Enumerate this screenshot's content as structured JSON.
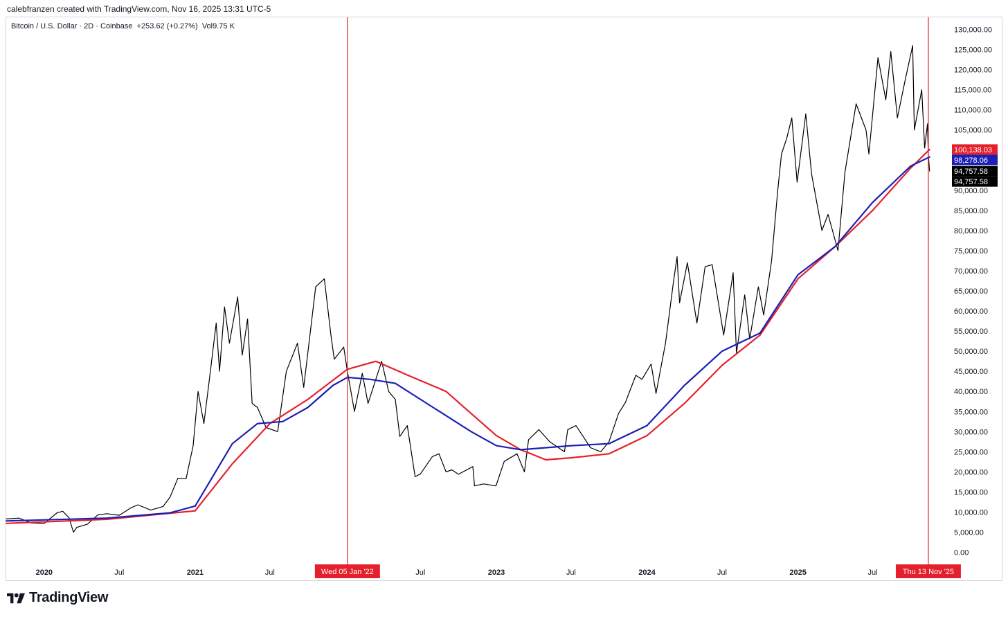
{
  "header": {
    "credit": "calebfranzen created with TradingView.com, Nov 16, 2025 13:31 UTC-5"
  },
  "legend": {
    "symbol": "Bitcoin / U.S. Dollar",
    "interval": "2D",
    "exchange": "Coinbase",
    "change": "+253.62 (+0.27%)",
    "volume": "Vol9.75 K"
  },
  "branding": {
    "name": "TradingView",
    "icon": "tradingview-logo-icon"
  },
  "colors": {
    "price": "#000000",
    "ma_red": "#e5202d",
    "ma_blue": "#1b1fb4",
    "marker": "#e5202d",
    "tag_black": "#000000"
  },
  "chart_data": {
    "type": "line",
    "x_range": [
      "2019-10-01",
      "2025-12-15"
    ],
    "y_range": [
      -3000,
      133000
    ],
    "y_ticks": [
      "130,000.00",
      "125,000.00",
      "120,000.00",
      "115,000.00",
      "110,000.00",
      "105,000.00",
      "90,000.00",
      "85,000.00",
      "80,000.00",
      "75,000.00",
      "70,000.00",
      "65,000.00",
      "60,000.00",
      "55,000.00",
      "50,000.00",
      "45,000.00",
      "40,000.00",
      "35,000.00",
      "30,000.00",
      "25,000.00",
      "20,000.00",
      "15,000.00",
      "10,000.00",
      "5,000.00",
      "0.00"
    ],
    "y_tick_values": [
      130000,
      125000,
      120000,
      115000,
      110000,
      105000,
      90000,
      85000,
      80000,
      75000,
      70000,
      65000,
      60000,
      55000,
      50000,
      45000,
      40000,
      35000,
      30000,
      25000,
      20000,
      15000,
      10000,
      5000,
      0
    ],
    "x_ticks": [
      {
        "label": "2020",
        "date": "2020-01-01",
        "bold": true
      },
      {
        "label": "Jul",
        "date": "2020-07-01",
        "bold": false
      },
      {
        "label": "2021",
        "date": "2021-01-01",
        "bold": true
      },
      {
        "label": "Jul",
        "date": "2021-07-01",
        "bold": false
      },
      {
        "label": "Jul",
        "date": "2022-07-01",
        "bold": false
      },
      {
        "label": "2023",
        "date": "2023-01-01",
        "bold": true
      },
      {
        "label": "Jul",
        "date": "2023-07-01",
        "bold": false
      },
      {
        "label": "2024",
        "date": "2024-01-01",
        "bold": true
      },
      {
        "label": "Jul",
        "date": "2024-07-01",
        "bold": false
      },
      {
        "label": "2025",
        "date": "2025-01-01",
        "bold": true
      },
      {
        "label": "Jul",
        "date": "2025-07-01",
        "bold": false
      }
    ],
    "markers": [
      {
        "label": "Wed 05 Jan '22",
        "date": "2022-01-05"
      },
      {
        "label": "Thu 13 Nov '25",
        "date": "2025-11-13"
      }
    ],
    "price_tags": [
      {
        "label": "100,138.03",
        "value": 100138.03,
        "color": "#e5202d"
      },
      {
        "label": "98,278.06",
        "value": 98278.06,
        "color": "#1b1fb4"
      },
      {
        "label": "94,757.58",
        "value": 94757.58,
        "color": "#000000"
      },
      {
        "label": "94,757.58",
        "value": 94757.58,
        "color": "#000000"
      }
    ],
    "series": [
      {
        "role": "price",
        "color": "#000000",
        "points": [
          [
            "2019-10-01",
            8300
          ],
          [
            "2019-11-01",
            8500
          ],
          [
            "2019-12-01",
            7300
          ],
          [
            "2020-01-01",
            7200
          ],
          [
            "2020-02-01",
            9800
          ],
          [
            "2020-02-15",
            10200
          ],
          [
            "2020-03-01",
            8600
          ],
          [
            "2020-03-12",
            5000
          ],
          [
            "2020-03-20",
            6200
          ],
          [
            "2020-04-15",
            7000
          ],
          [
            "2020-05-10",
            9300
          ],
          [
            "2020-06-01",
            9600
          ],
          [
            "2020-07-01",
            9200
          ],
          [
            "2020-07-28",
            11000
          ],
          [
            "2020-08-15",
            11800
          ],
          [
            "2020-09-15",
            10500
          ],
          [
            "2020-10-15",
            11400
          ],
          [
            "2020-11-01",
            13700
          ],
          [
            "2020-11-20",
            18400
          ],
          [
            "2020-12-10",
            18300
          ],
          [
            "2020-12-27",
            26500
          ],
          [
            "2021-01-08",
            40000
          ],
          [
            "2021-01-22",
            32000
          ],
          [
            "2021-02-08",
            46000
          ],
          [
            "2021-02-21",
            57000
          ],
          [
            "2021-03-01",
            45000
          ],
          [
            "2021-03-13",
            61000
          ],
          [
            "2021-03-25",
            52000
          ],
          [
            "2021-04-14",
            63500
          ],
          [
            "2021-04-25",
            49000
          ],
          [
            "2021-05-08",
            58000
          ],
          [
            "2021-05-19",
            37000
          ],
          [
            "2021-06-01",
            36000
          ],
          [
            "2021-06-22",
            31000
          ],
          [
            "2021-07-20",
            30000
          ],
          [
            "2021-08-10",
            45000
          ],
          [
            "2021-09-06",
            52000
          ],
          [
            "2021-09-21",
            41000
          ],
          [
            "2021-10-20",
            66000
          ],
          [
            "2021-11-10",
            68000
          ],
          [
            "2021-11-26",
            54000
          ],
          [
            "2021-12-04",
            48000
          ],
          [
            "2021-12-27",
            51000
          ],
          [
            "2022-01-05",
            45000
          ],
          [
            "2022-01-22",
            35000
          ],
          [
            "2022-02-10",
            44500
          ],
          [
            "2022-02-24",
            37000
          ],
          [
            "2022-03-29",
            47500
          ],
          [
            "2022-04-15",
            40000
          ],
          [
            "2022-05-01",
            38000
          ],
          [
            "2022-05-12",
            28800
          ],
          [
            "2022-05-30",
            31500
          ],
          [
            "2022-06-18",
            18800
          ],
          [
            "2022-07-01",
            19500
          ],
          [
            "2022-07-30",
            23800
          ],
          [
            "2022-08-15",
            24500
          ],
          [
            "2022-09-01",
            20000
          ],
          [
            "2022-09-15",
            20500
          ],
          [
            "2022-10-01",
            19400
          ],
          [
            "2022-11-05",
            21300
          ],
          [
            "2022-11-09",
            16500
          ],
          [
            "2022-12-01",
            17000
          ],
          [
            "2022-12-31",
            16500
          ],
          [
            "2023-01-20",
            22600
          ],
          [
            "2023-02-20",
            24500
          ],
          [
            "2023-03-10",
            20000
          ],
          [
            "2023-03-20",
            28000
          ],
          [
            "2023-04-14",
            30500
          ],
          [
            "2023-05-10",
            27500
          ],
          [
            "2023-06-15",
            25000
          ],
          [
            "2023-06-23",
            30500
          ],
          [
            "2023-07-13",
            31500
          ],
          [
            "2023-08-17",
            26000
          ],
          [
            "2023-09-11",
            25000
          ],
          [
            "2023-10-01",
            27500
          ],
          [
            "2023-10-24",
            34500
          ],
          [
            "2023-11-10",
            37300
          ],
          [
            "2023-12-05",
            44000
          ],
          [
            "2023-12-20",
            43000
          ],
          [
            "2024-01-11",
            46800
          ],
          [
            "2024-01-23",
            39500
          ],
          [
            "2024-02-15",
            52000
          ],
          [
            "2024-03-05",
            67000
          ],
          [
            "2024-03-14",
            73500
          ],
          [
            "2024-03-20",
            62000
          ],
          [
            "2024-04-08",
            72000
          ],
          [
            "2024-05-01",
            57000
          ],
          [
            "2024-05-21",
            71000
          ],
          [
            "2024-06-07",
            71500
          ],
          [
            "2024-07-05",
            54000
          ],
          [
            "2024-07-28",
            69500
          ],
          [
            "2024-08-05",
            49500
          ],
          [
            "2024-08-25",
            64000
          ],
          [
            "2024-09-06",
            53000
          ],
          [
            "2024-09-27",
            66000
          ],
          [
            "2024-10-10",
            59000
          ],
          [
            "2024-10-29",
            72500
          ],
          [
            "2024-11-13",
            90000
          ],
          [
            "2024-11-22",
            99000
          ],
          [
            "2024-12-05",
            103000
          ],
          [
            "2024-12-17",
            108000
          ],
          [
            "2024-12-30",
            92000
          ],
          [
            "2025-01-20",
            109000
          ],
          [
            "2025-02-03",
            94000
          ],
          [
            "2025-02-28",
            80000
          ],
          [
            "2025-03-15",
            84000
          ],
          [
            "2025-04-08",
            75000
          ],
          [
            "2025-04-25",
            94500
          ],
          [
            "2025-05-22",
            111500
          ],
          [
            "2025-06-15",
            105000
          ],
          [
            "2025-06-22",
            99000
          ],
          [
            "2025-07-14",
            123000
          ],
          [
            "2025-08-02",
            112500
          ],
          [
            "2025-08-14",
            124500
          ],
          [
            "2025-08-30",
            108000
          ],
          [
            "2025-09-18",
            117500
          ],
          [
            "2025-10-06",
            126000
          ],
          [
            "2025-10-10",
            105000
          ],
          [
            "2025-10-28",
            115000
          ],
          [
            "2025-11-04",
            100500
          ],
          [
            "2025-11-11",
            106500
          ],
          [
            "2025-11-13",
            99000
          ],
          [
            "2025-11-16",
            94757
          ]
        ]
      },
      {
        "role": "moving-average-red",
        "color": "#e5202d",
        "points": [
          [
            "2019-10-01",
            7200
          ],
          [
            "2020-06-01",
            8200
          ],
          [
            "2021-01-01",
            10300
          ],
          [
            "2021-04-01",
            22000
          ],
          [
            "2021-07-01",
            32000
          ],
          [
            "2021-10-01",
            38000
          ],
          [
            "2022-01-05",
            45500
          ],
          [
            "2022-03-15",
            47500
          ],
          [
            "2022-06-01",
            44000
          ],
          [
            "2022-09-01",
            40000
          ],
          [
            "2022-11-01",
            34500
          ],
          [
            "2023-01-01",
            29000
          ],
          [
            "2023-03-01",
            25500
          ],
          [
            "2023-05-01",
            23000
          ],
          [
            "2023-07-01",
            23500
          ],
          [
            "2023-10-01",
            24500
          ],
          [
            "2024-01-01",
            29000
          ],
          [
            "2024-04-01",
            37000
          ],
          [
            "2024-07-01",
            46500
          ],
          [
            "2024-10-01",
            54000
          ],
          [
            "2025-01-01",
            68000
          ],
          [
            "2025-04-01",
            76000
          ],
          [
            "2025-07-01",
            85000
          ],
          [
            "2025-10-01",
            95500
          ],
          [
            "2025-11-16",
            100138
          ]
        ]
      },
      {
        "role": "moving-average-blue",
        "color": "#1b1fb4",
        "points": [
          [
            "2019-10-01",
            7800
          ],
          [
            "2020-06-01",
            8500
          ],
          [
            "2020-11-01",
            9800
          ],
          [
            "2021-01-01",
            11500
          ],
          [
            "2021-04-01",
            27000
          ],
          [
            "2021-06-01",
            32000
          ],
          [
            "2021-08-01",
            32500
          ],
          [
            "2021-10-01",
            36000
          ],
          [
            "2021-12-01",
            41500
          ],
          [
            "2022-01-05",
            43500
          ],
          [
            "2022-03-01",
            43000
          ],
          [
            "2022-05-01",
            42000
          ],
          [
            "2022-08-01",
            36000
          ],
          [
            "2022-11-01",
            30000
          ],
          [
            "2023-01-01",
            26500
          ],
          [
            "2023-03-01",
            25500
          ],
          [
            "2023-07-01",
            26500
          ],
          [
            "2023-10-01",
            27000
          ],
          [
            "2024-01-01",
            31500
          ],
          [
            "2024-04-01",
            41500
          ],
          [
            "2024-07-01",
            50000
          ],
          [
            "2024-10-01",
            54500
          ],
          [
            "2025-01-01",
            69000
          ],
          [
            "2025-04-01",
            76000
          ],
          [
            "2025-07-01",
            87000
          ],
          [
            "2025-10-01",
            96000
          ],
          [
            "2025-11-16",
            98278
          ]
        ]
      }
    ]
  }
}
